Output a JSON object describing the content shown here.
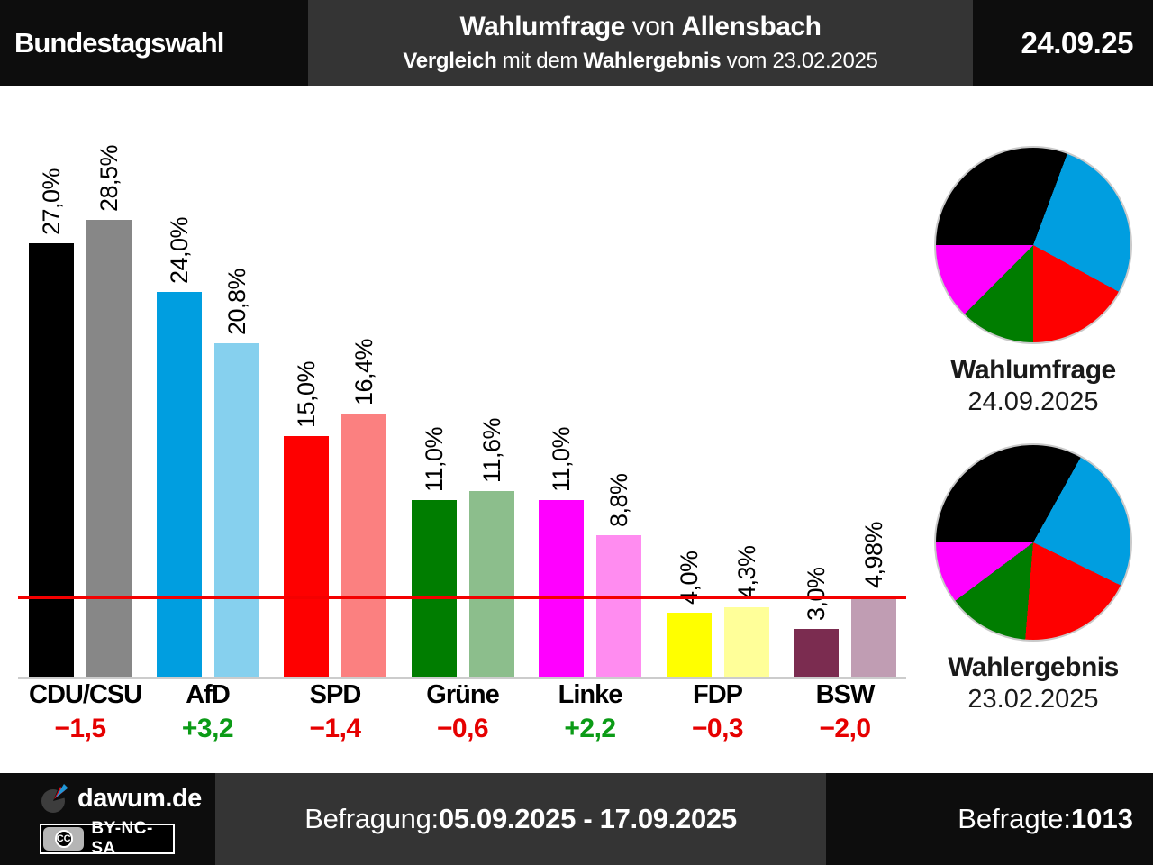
{
  "header": {
    "context": "Bundestagswahl",
    "title": {
      "bold1": "Wahlumfrage",
      "mid": " von ",
      "bold2": "Allensbach"
    },
    "subtitle": {
      "bold1": "Vergleich",
      "mid1": " mit dem ",
      "bold2": "Wahlergebnis",
      "tail": " vom 23.02.2025"
    },
    "date": "24.09.25"
  },
  "chart_data": {
    "type": "bar",
    "title": "Wahlumfrage von Allensbach — Vergleich mit dem Wahlergebnis vom 23.02.2025",
    "categories": [
      "CDU/CSU",
      "AfD",
      "SPD",
      "Grüne",
      "Linke",
      "FDP",
      "BSW"
    ],
    "series": [
      {
        "name": "Wahlumfrage 24.09.2025",
        "values": [
          27.0,
          24.0,
          15.0,
          11.0,
          11.0,
          4.0,
          3.0
        ],
        "labels": [
          "27,0%",
          "24,0%",
          "15,0%",
          "11,0%",
          "11,0%",
          "4,0%",
          "3,0%"
        ],
        "colors": [
          "#000000",
          "#009ee0",
          "#fe0000",
          "#007d00",
          "#ff00ff",
          "#ffff00",
          "#7b2c50"
        ]
      },
      {
        "name": "Wahlergebnis 23.02.2025",
        "values": [
          28.5,
          20.8,
          16.4,
          11.6,
          8.8,
          4.3,
          4.98
        ],
        "labels": [
          "28,5%",
          "20,8%",
          "16,4%",
          "11,6%",
          "8,8%",
          "4,3%",
          "4,98%"
        ],
        "colors": [
          "#878787",
          "#86d0ee",
          "#fb8080",
          "#8cbe8c",
          "#ff8cf0",
          "#ffff99",
          "#c09db3"
        ]
      }
    ],
    "diffs": [
      {
        "label": "−1,5",
        "color": "#e60000"
      },
      {
        "label": "+3,2",
        "color": "#0b9b16"
      },
      {
        "label": "−1,4",
        "color": "#e60000"
      },
      {
        "label": "−0,6",
        "color": "#e60000"
      },
      {
        "label": "+2,2",
        "color": "#0b9b16"
      },
      {
        "label": "−0,3",
        "color": "#e60000"
      },
      {
        "label": "−2,0",
        "color": "#e60000"
      }
    ],
    "threshold": {
      "value": 5,
      "color": "#f40000"
    },
    "ylim": [
      0,
      30
    ],
    "grid": false,
    "legend": "none",
    "baseline_color": "#cccccc"
  },
  "pies": [
    {
      "title": "Wahlumfrage",
      "date": "24.09.2025",
      "type": "pie",
      "start_angle_deg": 270,
      "slices": [
        {
          "party": "CDU/CSU",
          "value": 27.0,
          "color": "#000000"
        },
        {
          "party": "AfD",
          "value": 24.0,
          "color": "#009ee0"
        },
        {
          "party": "SPD",
          "value": 15.0,
          "color": "#fe0000"
        },
        {
          "party": "Grüne",
          "value": 11.0,
          "color": "#007d00"
        },
        {
          "party": "Linke",
          "value": 11.0,
          "color": "#ff00ff"
        }
      ]
    },
    {
      "title": "Wahlergebnis",
      "date": "23.02.2025",
      "type": "pie",
      "start_angle_deg": 270,
      "slices": [
        {
          "party": "CDU/CSU",
          "value": 28.5,
          "color": "#000000"
        },
        {
          "party": "AfD",
          "value": 20.8,
          "color": "#009ee0"
        },
        {
          "party": "SPD",
          "value": 16.4,
          "color": "#fe0000"
        },
        {
          "party": "Grüne",
          "value": 11.6,
          "color": "#007d00"
        },
        {
          "party": "Linke",
          "value": 8.8,
          "color": "#ff00ff"
        }
      ]
    }
  ],
  "footer": {
    "brand": "dawum.de",
    "cc_initials": "CC",
    "license": "BY-NC-SA",
    "survey_label": "Befragung: ",
    "survey_period": "05.09.2025 - 17.09.2025",
    "respondents_label": "Befragte: ",
    "respondents": "1013"
  }
}
